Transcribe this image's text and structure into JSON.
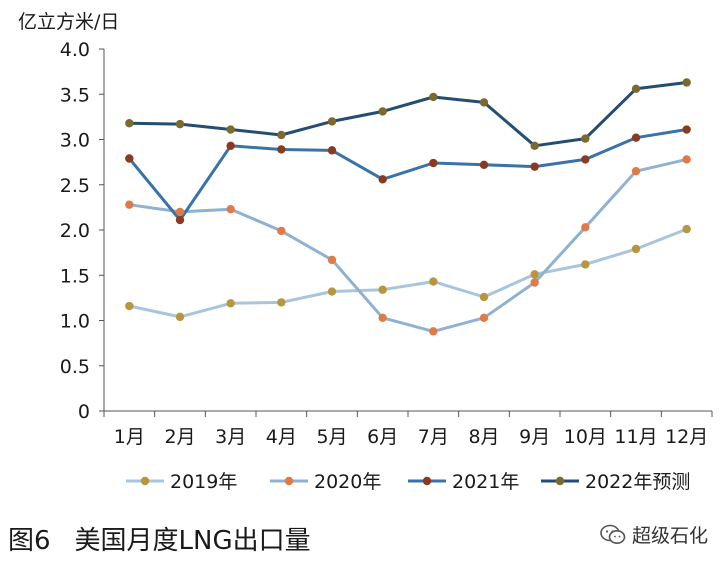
{
  "chart_data": {
    "type": "line",
    "ylabel": "亿立方米/日",
    "ylim": [
      0,
      4.0
    ],
    "yticks": [
      "0",
      "0.5",
      "1.0",
      "1.5",
      "2.0",
      "2.5",
      "3.0",
      "3.5",
      "4.0"
    ],
    "categories": [
      "1月",
      "2月",
      "3月",
      "4月",
      "5月",
      "6月",
      "7月",
      "8月",
      "9月",
      "10月",
      "11月",
      "12月"
    ],
    "legend_position": "bottom",
    "grid": false,
    "series": [
      {
        "name": "2019年",
        "line_color": "#a9c5dd",
        "marker_color": "#b8963e",
        "values": [
          1.16,
          1.04,
          1.19,
          1.2,
          1.32,
          1.34,
          1.43,
          1.26,
          1.51,
          1.62,
          1.79,
          2.01
        ]
      },
      {
        "name": "2020年",
        "line_color": "#8fb2d3",
        "marker_color": "#e07b48",
        "values": [
          2.28,
          2.2,
          2.23,
          1.99,
          1.67,
          1.03,
          0.88,
          1.03,
          1.42,
          2.03,
          2.65,
          2.78
        ]
      },
      {
        "name": "2021年",
        "line_color": "#3a73a8",
        "marker_color": "#8b3a22",
        "values": [
          2.79,
          2.11,
          2.93,
          2.89,
          2.88,
          2.56,
          2.74,
          2.72,
          2.7,
          2.78,
          3.02,
          3.11
        ]
      },
      {
        "name": "2022年预测",
        "line_color": "#234d72",
        "marker_color": "#7a6a2e",
        "values": [
          3.18,
          3.17,
          3.11,
          3.05,
          3.2,
          3.31,
          3.47,
          3.41,
          2.93,
          3.01,
          3.56,
          3.63
        ]
      }
    ]
  },
  "caption": {
    "figure_label": "图6",
    "title": "美国月度LNG出口量"
  },
  "brand": {
    "name": "超级石化",
    "icon": "wechat-icon"
  }
}
